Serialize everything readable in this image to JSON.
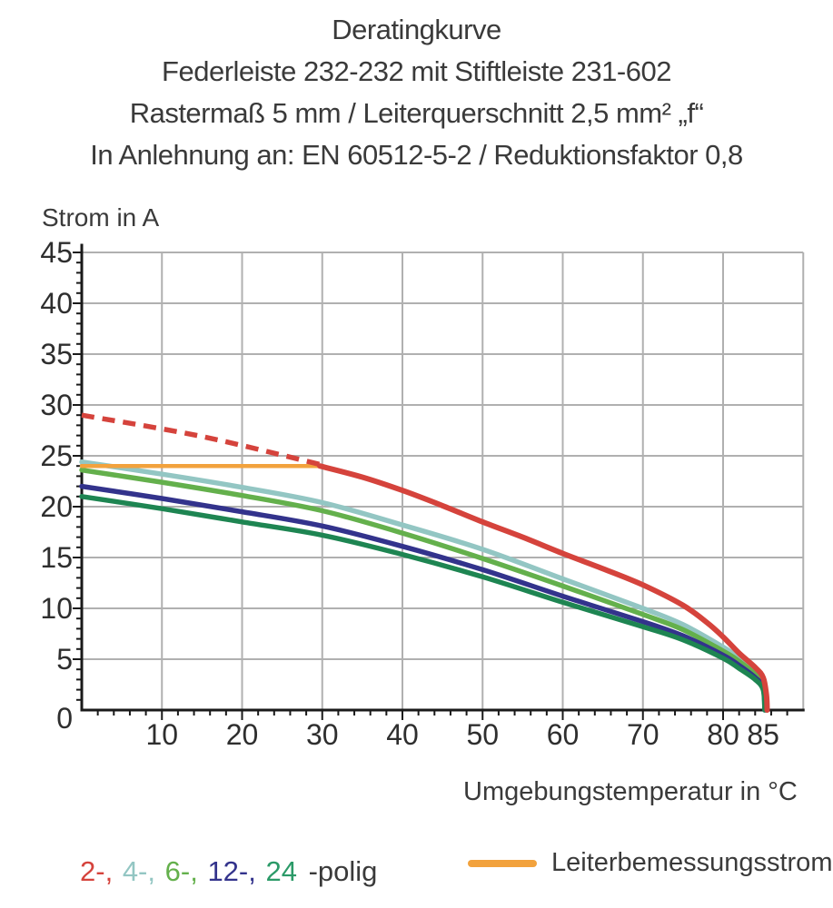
{
  "title": {
    "lines": [
      "Deratingkurve",
      "Federleiste 232-232 mit Stiftleiste 231-602",
      "Rastermaß 5 mm / Leiterquerschnitt 2,5 mm² „f“",
      "In Anlehnung an: EN 60512-5-2 / Reduktionsfaktor 0,8"
    ]
  },
  "chart_data": {
    "type": "line",
    "title": "Deratingkurve",
    "xlabel": "Umgebungstemperatur in °C",
    "ylabel": "Strom in A",
    "xlim": [
      0,
      90
    ],
    "ylim": [
      0,
      45
    ],
    "xticks": [
      10,
      20,
      30,
      40,
      50,
      60,
      70,
      80,
      85
    ],
    "yticks": [
      0,
      5,
      10,
      15,
      20,
      25,
      30,
      35,
      40,
      45
    ],
    "x_minor_step": 2,
    "y_minor_step": 1,
    "grid": true,
    "grid_color": "#b0b0b0",
    "axis_color": "#1a1a1a",
    "tick_label_color": "#2e2e2e",
    "series": [
      {
        "name": "4-polig",
        "color": "#93c6c3",
        "style": "solid",
        "width": 5.5,
        "points": [
          [
            0,
            24.4
          ],
          [
            10,
            23.2
          ],
          [
            20,
            21.9
          ],
          [
            30,
            20.4
          ],
          [
            40,
            18.2
          ],
          [
            50,
            15.8
          ],
          [
            60,
            12.9
          ],
          [
            70,
            10.0
          ],
          [
            75,
            8.4
          ],
          [
            80,
            6.2
          ],
          [
            82,
            5.1
          ],
          [
            84,
            3.8
          ],
          [
            85,
            2.6
          ],
          [
            85.3,
            0
          ]
        ]
      },
      {
        "name": "6-polig",
        "color": "#64b04c",
        "style": "solid",
        "width": 5.5,
        "points": [
          [
            0,
            23.6
          ],
          [
            10,
            22.4
          ],
          [
            20,
            21.1
          ],
          [
            30,
            19.6
          ],
          [
            40,
            17.4
          ],
          [
            50,
            14.9
          ],
          [
            60,
            12.2
          ],
          [
            70,
            9.4
          ],
          [
            75,
            7.9
          ],
          [
            80,
            5.8
          ],
          [
            82,
            4.8
          ],
          [
            84,
            3.5
          ],
          [
            85,
            2.4
          ],
          [
            85.3,
            0
          ]
        ]
      },
      {
        "name": "12-polig",
        "color": "#33338c",
        "style": "solid",
        "width": 5.5,
        "points": [
          [
            0,
            22.0
          ],
          [
            10,
            20.8
          ],
          [
            20,
            19.5
          ],
          [
            30,
            18.1
          ],
          [
            40,
            16.1
          ],
          [
            50,
            13.8
          ],
          [
            60,
            11.2
          ],
          [
            70,
            8.7
          ],
          [
            75,
            7.3
          ],
          [
            80,
            5.4
          ],
          [
            82,
            4.4
          ],
          [
            84,
            3.2
          ],
          [
            85,
            2.2
          ],
          [
            85.2,
            0
          ]
        ]
      },
      {
        "name": "24-polig",
        "color": "#1e8552",
        "style": "solid",
        "width": 5.5,
        "points": [
          [
            0,
            21.0
          ],
          [
            10,
            19.8
          ],
          [
            20,
            18.5
          ],
          [
            30,
            17.2
          ],
          [
            40,
            15.3
          ],
          [
            50,
            13.1
          ],
          [
            60,
            10.6
          ],
          [
            70,
            8.2
          ],
          [
            75,
            6.9
          ],
          [
            80,
            5.1
          ],
          [
            82,
            4.1
          ],
          [
            84,
            3.0
          ],
          [
            85,
            2.0
          ],
          [
            85.2,
            0
          ]
        ]
      },
      {
        "name": "Leiterbemessungsstrom",
        "color": "#f2a23d",
        "style": "solid",
        "width": 4.5,
        "points": [
          [
            0,
            24
          ],
          [
            29.7,
            24
          ]
        ]
      },
      {
        "name": "2-polig theoretisch",
        "color": "#d5433c",
        "style": "dashed",
        "width": 5.5,
        "points": [
          [
            0,
            29
          ],
          [
            15,
            26.9
          ],
          [
            30,
            24.1
          ]
        ]
      },
      {
        "name": "2-polig",
        "color": "#d5433c",
        "style": "solid",
        "width": 6,
        "points": [
          [
            29.7,
            24
          ],
          [
            35,
            22.9
          ],
          [
            40,
            21.6
          ],
          [
            45,
            20.1
          ],
          [
            50,
            18.5
          ],
          [
            55,
            17.0
          ],
          [
            60,
            15.4
          ],
          [
            65,
            13.9
          ],
          [
            70,
            12.3
          ],
          [
            75,
            10.3
          ],
          [
            78,
            8.6
          ],
          [
            80,
            7.2
          ],
          [
            82,
            5.6
          ],
          [
            84,
            4.2
          ],
          [
            85,
            3.2
          ],
          [
            85.4,
            1.5
          ],
          [
            85.5,
            0
          ]
        ]
      }
    ]
  },
  "legend": {
    "poles": {
      "items": [
        {
          "label": "2-,",
          "color": "#d5433c"
        },
        {
          "label": "4-,",
          "color": "#93c6c3"
        },
        {
          "label": "6-,",
          "color": "#64b04c"
        },
        {
          "label": "12-,",
          "color": "#33338c"
        },
        {
          "label": "24",
          "color": "#2b9a68"
        }
      ],
      "suffix": "-polig"
    },
    "rated": {
      "label": "Leiterbemessungsstrom",
      "color": "#f2a23d"
    }
  }
}
